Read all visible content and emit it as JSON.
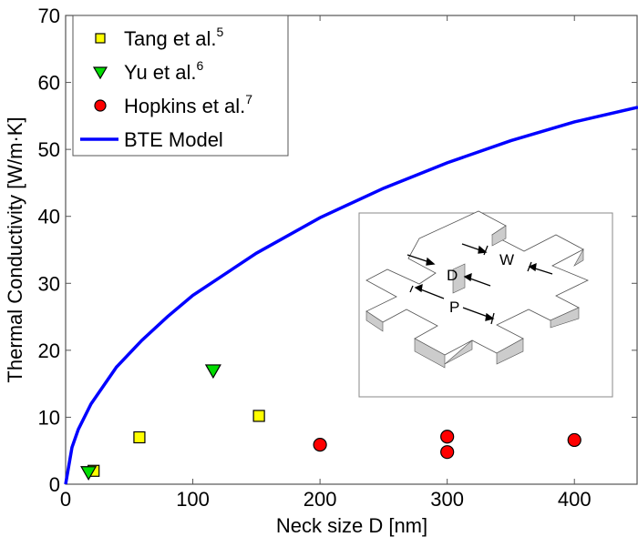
{
  "chart_data": {
    "type": "scatter",
    "title": "",
    "xlabel": "Neck size D [nm]",
    "ylabel": "Thermal Conductivity [W/m·K]",
    "xlim": [
      0,
      450
    ],
    "ylim": [
      0,
      70
    ],
    "xticks": [
      0,
      100,
      200,
      300,
      400
    ],
    "yticks": [
      0,
      10,
      20,
      30,
      40,
      50,
      60,
      70
    ],
    "grid": false,
    "legend_position": "upper left",
    "series": [
      {
        "name": "Tang et al.",
        "ref": "5",
        "marker": "square",
        "color": "#ffff00",
        "points": [
          [
            22,
            2
          ],
          [
            58,
            7
          ],
          [
            152,
            10.2
          ]
        ]
      },
      {
        "name": "Yu et al.",
        "ref": "6",
        "marker": "triangle-down",
        "color": "#00dd00",
        "points": [
          [
            18,
            1.8
          ],
          [
            116,
            17
          ]
        ]
      },
      {
        "name": "Hopkins et al.",
        "ref": "7",
        "marker": "circle",
        "color": "#ff0000",
        "points": [
          [
            200,
            5.9
          ],
          [
            300,
            7.1
          ],
          [
            300,
            4.8
          ],
          [
            400,
            6.6
          ]
        ]
      },
      {
        "name": "BTE Model",
        "marker": "line",
        "color": "#0000ff",
        "points": [
          [
            0,
            0
          ],
          [
            5,
            5.5
          ],
          [
            10,
            8.2
          ],
          [
            20,
            12
          ],
          [
            40,
            17.5
          ],
          [
            60,
            21.5
          ],
          [
            80,
            25
          ],
          [
            100,
            28.2
          ],
          [
            150,
            34.5
          ],
          [
            200,
            39.8
          ],
          [
            250,
            44.2
          ],
          [
            300,
            48
          ],
          [
            350,
            51.3
          ],
          [
            400,
            54.1
          ],
          [
            450,
            56.3
          ]
        ]
      }
    ]
  },
  "inset": {
    "labels": {
      "d": "D",
      "w": "W",
      "p": "P"
    }
  }
}
